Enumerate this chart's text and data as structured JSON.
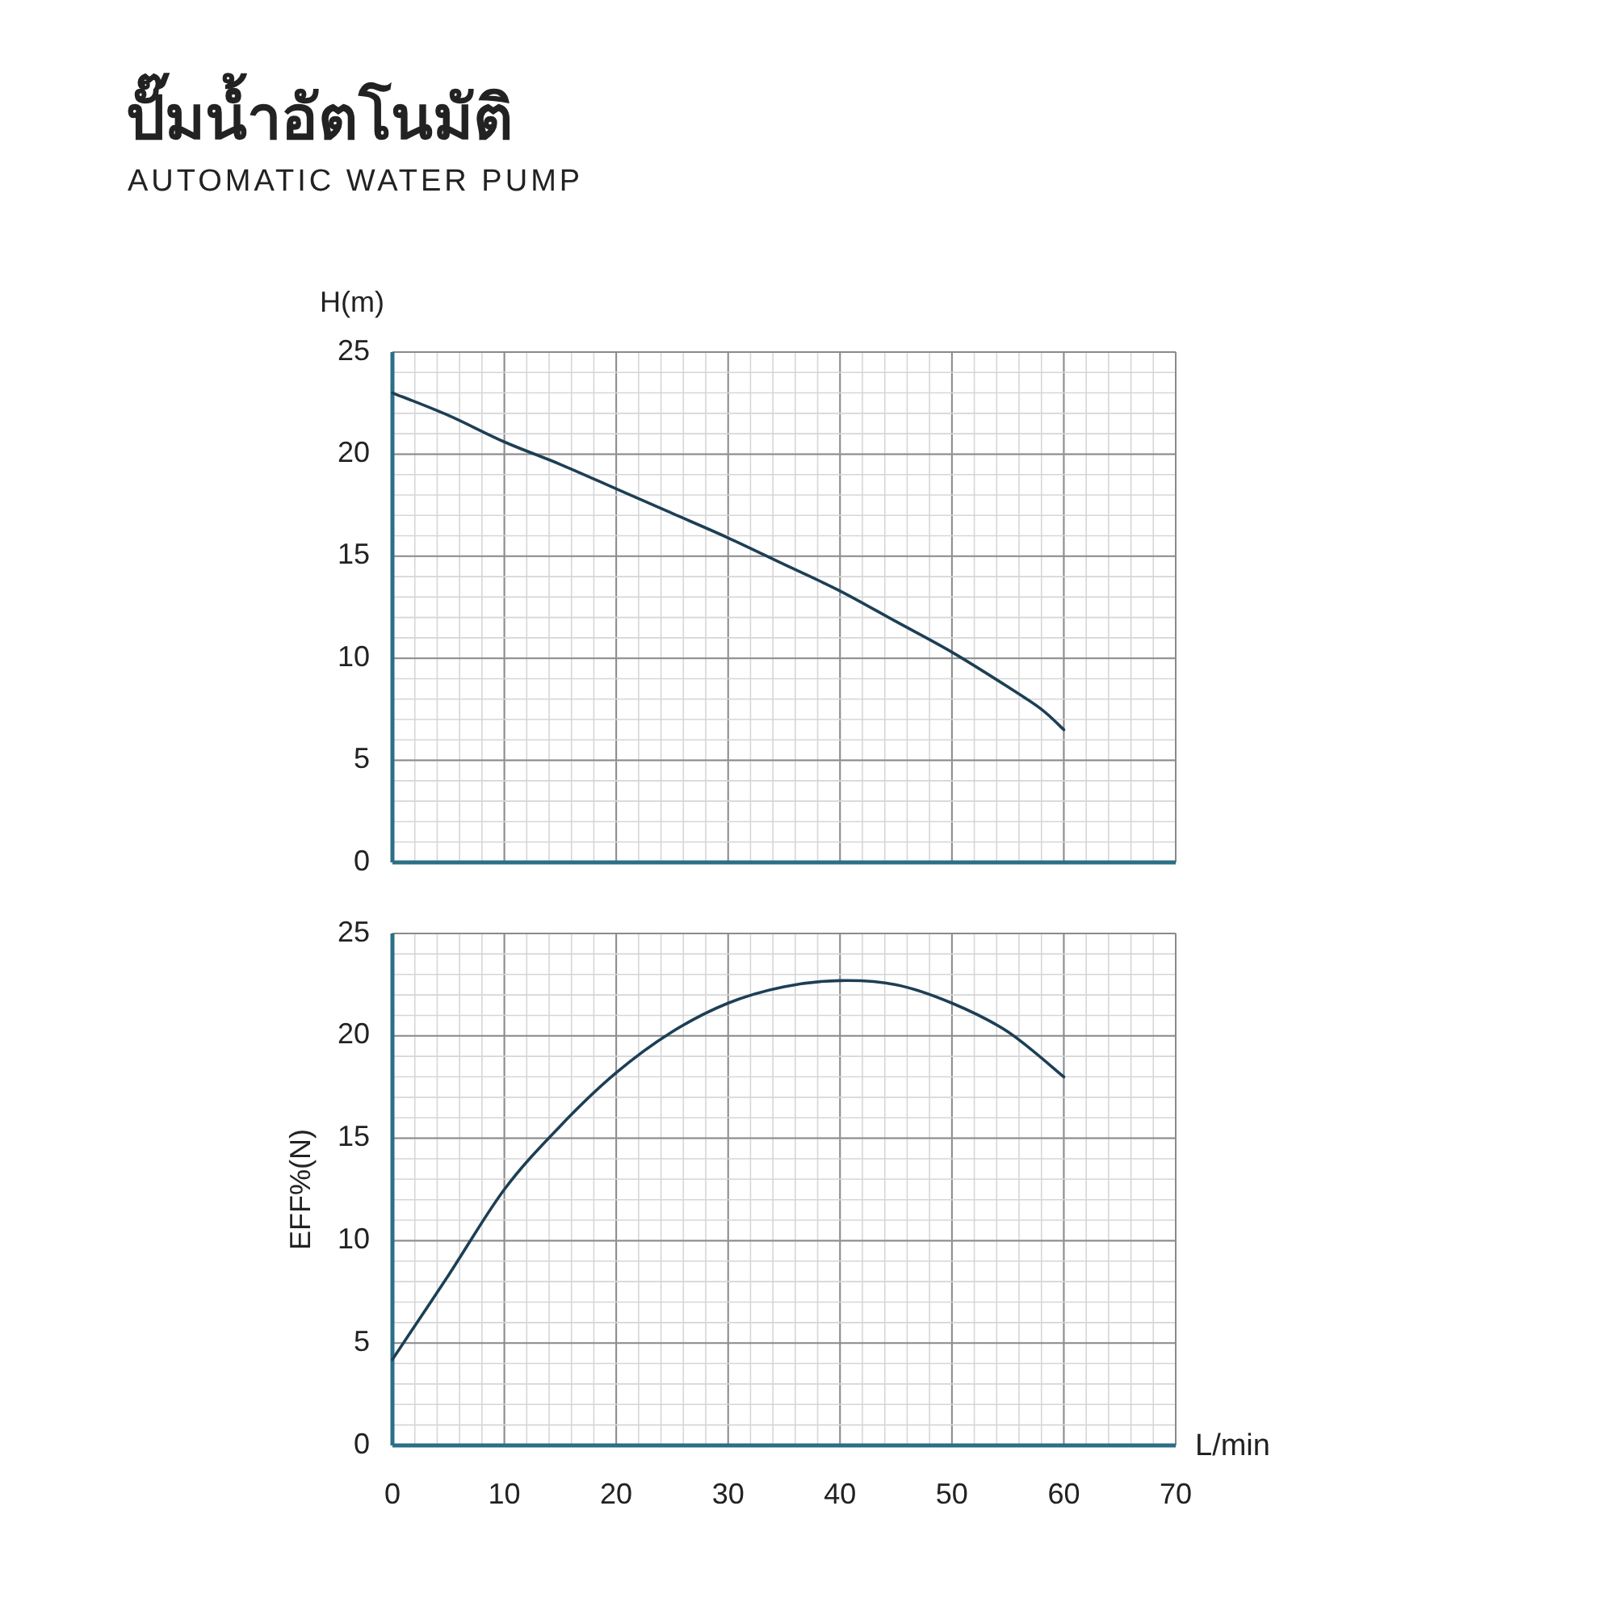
{
  "chart_data": [
    {
      "type": "line",
      "title": "ปั๊มน้ำอัตโนมัติ",
      "subtitle": "AUTOMATIC WATER PUMP",
      "ylabel": "H(m)",
      "x": [
        0,
        5,
        10,
        15,
        20,
        25,
        30,
        35,
        40,
        45,
        50,
        55,
        58,
        60
      ],
      "series": [
        {
          "color": "#1d3f55",
          "values": [
            23.0,
            21.9,
            20.6,
            19.5,
            18.3,
            17.1,
            15.9,
            14.6,
            13.3,
            11.8,
            10.3,
            8.6,
            7.5,
            6.5
          ]
        }
      ],
      "xlim": [
        0,
        70
      ],
      "xticks": [
        0,
        10,
        20,
        30,
        40,
        50,
        60,
        70
      ],
      "ylim": [
        0,
        25
      ],
      "yticks": [
        0,
        5,
        10,
        15,
        20,
        25
      ],
      "tick_labels": "y",
      "grid": true
    },
    {
      "type": "line",
      "ylabel": "EFF%(N)",
      "xlabel": "L/min",
      "x": [
        0,
        5,
        10,
        15,
        20,
        25,
        30,
        35,
        40,
        45,
        50,
        55,
        60
      ],
      "series": [
        {
          "color": "#1d3f55",
          "values": [
            4.2,
            8.3,
            12.5,
            15.6,
            18.2,
            20.2,
            21.6,
            22.4,
            22.7,
            22.5,
            21.6,
            20.2,
            18.0
          ]
        }
      ],
      "xlim": [
        0,
        70
      ],
      "xticks": [
        0,
        10,
        20,
        30,
        40,
        50,
        60,
        70
      ],
      "ylim": [
        0,
        25
      ],
      "yticks": [
        0,
        5,
        10,
        15,
        20,
        25
      ],
      "grid": true
    }
  ]
}
